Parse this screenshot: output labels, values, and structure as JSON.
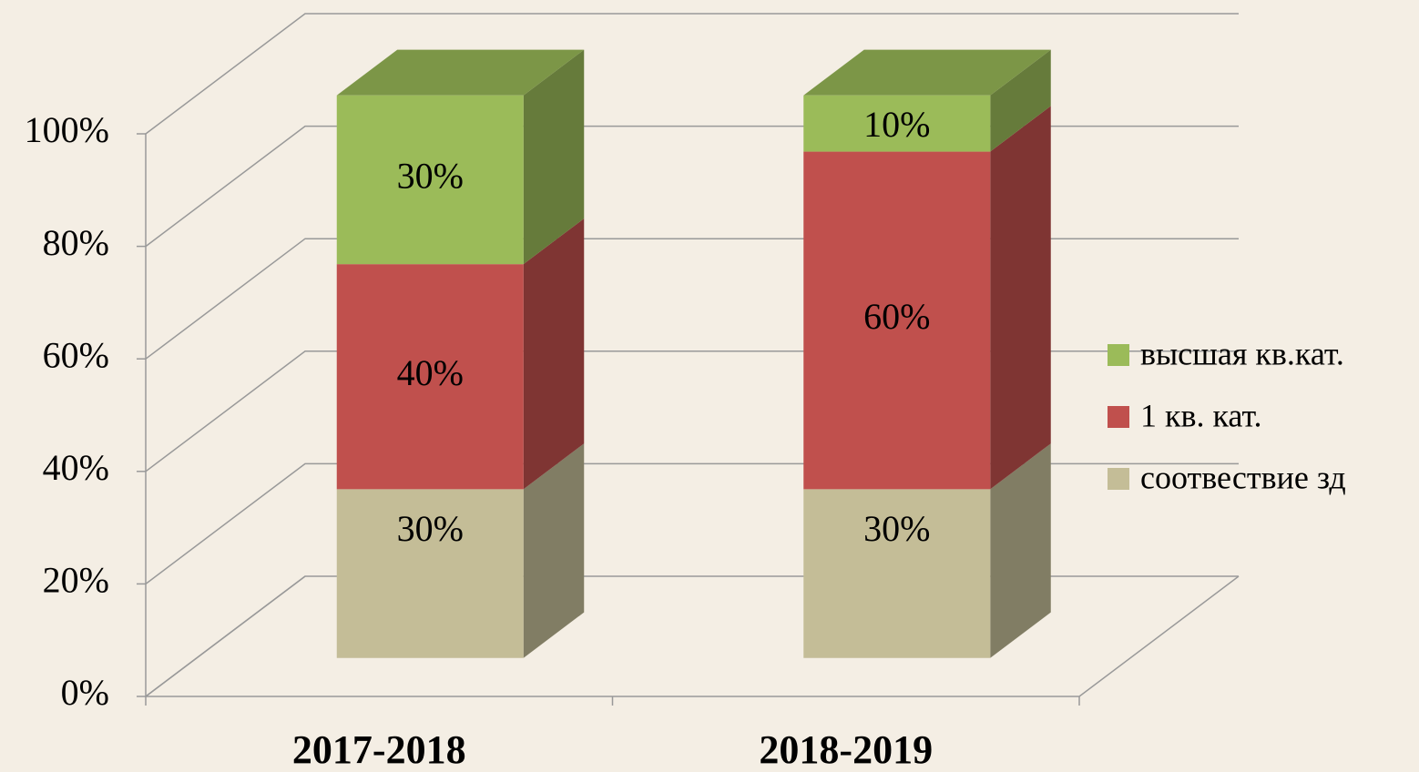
{
  "chart_data": {
    "type": "bar3d_stacked",
    "categories": [
      "2017-2018",
      "2018-2019"
    ],
    "series": [
      {
        "name": "соотвествие зд",
        "color": "#c4bd97",
        "values": [
          30,
          30
        ],
        "value_labels": [
          "30%",
          "30%"
        ]
      },
      {
        "name": "1 кв. кат.",
        "color": "#c0504d",
        "values": [
          40,
          60
        ],
        "value_labels": [
          "40%",
          "60%"
        ]
      },
      {
        "name": "высшая кв.кат.",
        "color": "#9bbb59",
        "values": [
          30,
          10
        ],
        "value_labels": [
          "30%",
          "10%"
        ]
      }
    ],
    "ylim": [
      0,
      100
    ],
    "yticks": [
      {
        "value": 0,
        "label": "0%"
      },
      {
        "value": 20,
        "label": "20%"
      },
      {
        "value": 40,
        "label": "40%"
      },
      {
        "value": 60,
        "label": "60%"
      },
      {
        "value": 80,
        "label": "80%"
      },
      {
        "value": 100,
        "label": "100%"
      }
    ],
    "grid": true,
    "legend": "right"
  }
}
